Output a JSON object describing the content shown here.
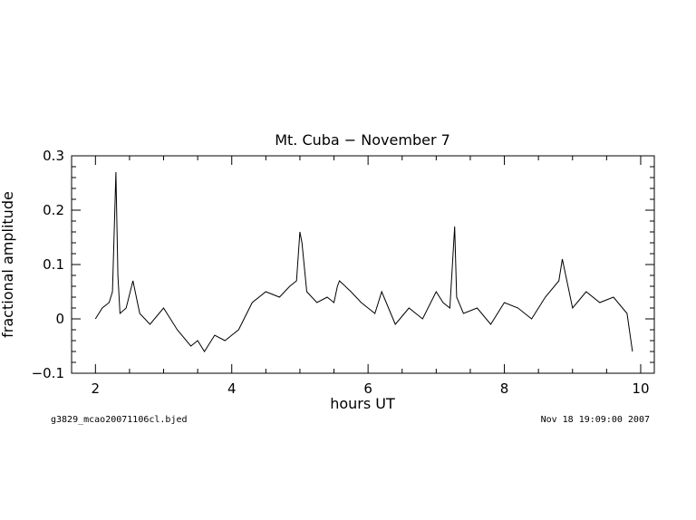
{
  "chart_data": {
    "type": "line",
    "title": "Mt. Cuba − November 7",
    "xlabel": "hours UT",
    "ylabel": "fractional amplitude",
    "xlim": [
      1.65,
      10.2
    ],
    "ylim": [
      -0.1,
      0.3
    ],
    "x_ticks": [
      2,
      4,
      6,
      8,
      10
    ],
    "x_tick_labels": [
      "2",
      "4",
      "6",
      "8",
      "10"
    ],
    "y_ticks": [
      -0.1,
      0,
      0.1,
      0.2,
      0.3
    ],
    "y_tick_labels": [
      "−0.1",
      "0",
      "0.1",
      "0.2",
      "0.3"
    ],
    "grid": false,
    "line_color": "#000000",
    "series": [
      {
        "x": [
          2.0,
          2.1,
          2.2,
          2.25,
          2.3,
          2.33,
          2.36,
          2.45,
          2.55,
          2.65,
          2.8,
          3.0,
          3.2,
          3.4,
          3.5,
          3.6,
          3.75,
          3.9,
          4.1,
          4.3,
          4.5,
          4.7,
          4.85,
          4.95,
          5.0,
          5.03,
          5.1,
          5.25,
          5.4,
          5.5,
          5.55,
          5.58,
          5.75,
          5.9,
          6.0,
          6.05,
          6.1,
          6.2,
          6.3,
          6.4,
          6.6,
          6.8,
          7.0,
          7.1,
          7.2,
          7.27,
          7.3,
          7.4,
          7.6,
          7.8,
          8.0,
          8.2,
          8.4,
          8.6,
          8.8,
          8.85,
          9.0,
          9.2,
          9.4,
          9.6,
          9.8,
          9.88
        ],
        "y": [
          0.0,
          0.02,
          0.03,
          0.05,
          0.27,
          0.08,
          0.01,
          0.02,
          0.07,
          0.01,
          -0.01,
          0.02,
          -0.02,
          -0.05,
          -0.04,
          -0.06,
          -0.03,
          -0.04,
          -0.02,
          0.03,
          0.05,
          0.04,
          0.06,
          0.07,
          0.16,
          0.14,
          0.05,
          0.03,
          0.04,
          0.03,
          0.06,
          0.07,
          0.05,
          0.03,
          0.02,
          0.015,
          0.01,
          0.05,
          0.02,
          -0.01,
          0.02,
          0.0,
          0.05,
          0.03,
          0.02,
          0.17,
          0.04,
          0.01,
          0.02,
          -0.01,
          0.03,
          0.02,
          0.0,
          0.04,
          0.07,
          0.11,
          0.02,
          0.05,
          0.03,
          0.04,
          0.01,
          -0.06
        ]
      }
    ]
  },
  "footer": {
    "left": "g3829_mcao20071106cl.bjed",
    "right": "Nov 18 19:09:00 2007"
  }
}
